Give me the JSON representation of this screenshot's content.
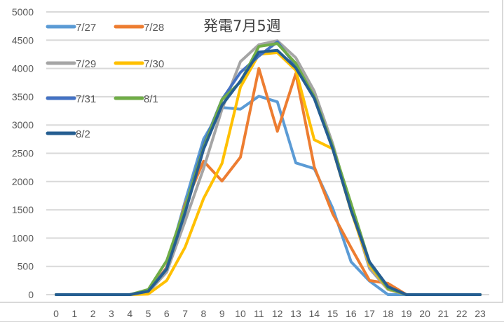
{
  "chart_data": {
    "type": "line",
    "title": "発電7月5週",
    "xlabel": "",
    "ylabel": "",
    "x": [
      0,
      1,
      2,
      3,
      4,
      5,
      6,
      7,
      8,
      9,
      10,
      11,
      12,
      13,
      14,
      15,
      16,
      17,
      18,
      19,
      20,
      21,
      22,
      23
    ],
    "ylim": [
      0,
      5000
    ],
    "yticks": [
      0,
      500,
      1000,
      1500,
      2000,
      2500,
      3000,
      3500,
      4000,
      4500,
      5000
    ],
    "grid": true,
    "legend_position": "top-left, inside plot, 2 columns",
    "series": [
      {
        "name": "7/27",
        "color": "#5B9BD5",
        "values": [
          0,
          0,
          0,
          0,
          0,
          60,
          480,
          1650,
          2750,
          3310,
          3280,
          3510,
          3410,
          2330,
          2230,
          1530,
          580,
          240,
          0,
          0,
          0,
          0,
          0,
          0
        ]
      },
      {
        "name": "7/28",
        "color": "#ED7D31",
        "values": [
          0,
          0,
          0,
          0,
          0,
          60,
          480,
          1600,
          2360,
          2010,
          2430,
          4000,
          2890,
          3910,
          2260,
          1430,
          830,
          250,
          200,
          0,
          0,
          0,
          0,
          0
        ]
      },
      {
        "name": "7/29",
        "color": "#A5A5A5",
        "values": [
          0,
          0,
          0,
          0,
          0,
          40,
          400,
          1300,
          2230,
          3280,
          4120,
          4420,
          4490,
          4190,
          3600,
          2670,
          1520,
          460,
          90,
          0,
          0,
          0,
          0,
          0
        ]
      },
      {
        "name": "7/30",
        "color": "#FFC000",
        "values": [
          0,
          0,
          0,
          0,
          0,
          10,
          250,
          840,
          1700,
          2320,
          3670,
          4250,
          4280,
          3970,
          2740,
          2580,
          1480,
          520,
          100,
          0,
          0,
          0,
          0,
          0
        ]
      },
      {
        "name": "7/31",
        "color": "#4472C4",
        "values": [
          0,
          0,
          0,
          0,
          0,
          60,
          460,
          1550,
          2650,
          3450,
          3930,
          4220,
          4470,
          4050,
          3480,
          2600,
          1520,
          560,
          110,
          0,
          0,
          0,
          0,
          0
        ]
      },
      {
        "name": "8/1",
        "color": "#70AD47",
        "values": [
          0,
          0,
          0,
          0,
          0,
          90,
          600,
          1550,
          2600,
          3450,
          3760,
          4390,
          4440,
          4090,
          3500,
          2620,
          1610,
          570,
          110,
          0,
          0,
          0,
          0,
          0
        ]
      },
      {
        "name": "8/2",
        "color": "#255E91",
        "values": [
          0,
          0,
          0,
          0,
          0,
          60,
          450,
          1450,
          2570,
          3350,
          3780,
          4290,
          4320,
          4010,
          3470,
          2580,
          1490,
          580,
          140,
          0,
          0,
          0,
          0,
          0
        ]
      }
    ]
  },
  "legend": [
    {
      "label": "7/27",
      "color": "#5B9BD5"
    },
    {
      "label": "7/28",
      "color": "#ED7D31"
    },
    {
      "label": "7/29",
      "color": "#A5A5A5"
    },
    {
      "label": "7/30",
      "color": "#FFC000"
    },
    {
      "label": "7/31",
      "color": "#4472C4"
    },
    {
      "label": "8/1",
      "color": "#70AD47"
    },
    {
      "label": "8/2",
      "color": "#255E91"
    }
  ],
  "gridline_color": "#D9D9D9"
}
